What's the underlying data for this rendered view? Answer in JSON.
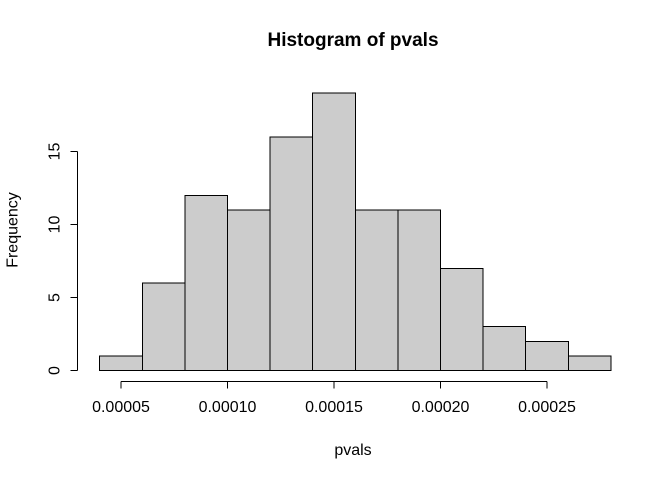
{
  "chart_data": {
    "type": "bar",
    "subtype": "histogram",
    "title": "Histogram of pvals",
    "xlabel": "pvals",
    "ylabel": "Frequency",
    "breaks": [
      4e-05,
      6e-05,
      8e-05,
      0.0001,
      0.00012,
      0.00014,
      0.00016,
      0.00018,
      0.0002,
      0.00022,
      0.00024,
      0.00026,
      0.00028
    ],
    "counts": [
      1,
      6,
      12,
      11,
      16,
      19,
      11,
      11,
      7,
      3,
      2,
      1
    ],
    "bin_width": 2e-05,
    "ylim": [
      0,
      19
    ],
    "x_ticks": [
      {
        "value": 5e-05,
        "label": "0.00005"
      },
      {
        "value": 0.0001,
        "label": "0.00010"
      },
      {
        "value": 0.00015,
        "label": "0.00015"
      },
      {
        "value": 0.0002,
        "label": "0.00020"
      },
      {
        "value": 0.00025,
        "label": "0.00025"
      }
    ],
    "y_ticks": [
      {
        "value": 0,
        "label": "0"
      },
      {
        "value": 5,
        "label": "5"
      },
      {
        "value": 10,
        "label": "10"
      },
      {
        "value": 15,
        "label": "15"
      }
    ],
    "grid": false,
    "legend": null,
    "bar_fill": "#cccccc",
    "bar_stroke": "#000000",
    "axis_color": "#000000",
    "background": "#ffffff"
  }
}
